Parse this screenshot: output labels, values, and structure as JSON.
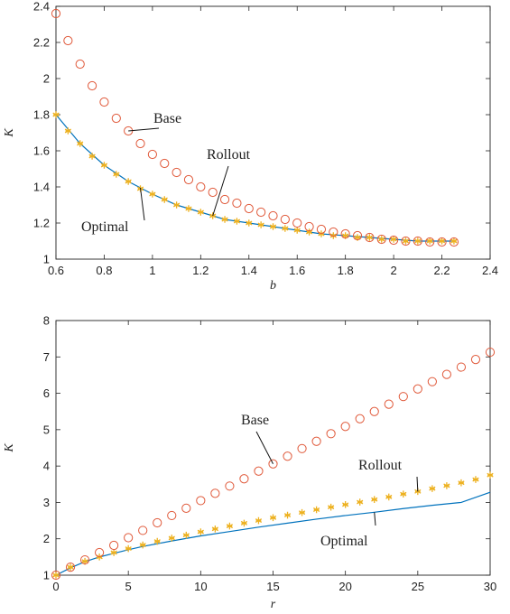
{
  "chart_data": [
    {
      "type": "scatter",
      "xlabel": "b",
      "ylabel": "K",
      "xlim": [
        0.6,
        2.4
      ],
      "ylim": [
        1,
        2.4
      ],
      "xticks": [
        "0.6",
        "0.8",
        "1",
        "1.2",
        "1.4",
        "1.6",
        "1.8",
        "2",
        "2.2",
        "2.4"
      ],
      "yticks": [
        "1",
        "1.2",
        "1.4",
        "1.6",
        "1.8",
        "2",
        "2.2",
        "2.4"
      ],
      "grid": false,
      "annotations": [
        {
          "text": "Base",
          "series": "Base",
          "x": 0.9
        },
        {
          "text": "Rollout",
          "series": "Rollout",
          "x": 1.25
        },
        {
          "text": "Optimal",
          "series": "Optimal",
          "x": 0.95
        }
      ],
      "series": [
        {
          "name": "Base",
          "style": "circle",
          "color": "#e0593a",
          "x": [
            0.6,
            0.65,
            0.7,
            0.75,
            0.8,
            0.85,
            0.9,
            0.95,
            1.0,
            1.05,
            1.1,
            1.15,
            1.2,
            1.25,
            1.3,
            1.35,
            1.4,
            1.45,
            1.5,
            1.55,
            1.6,
            1.65,
            1.7,
            1.75,
            1.8,
            1.85,
            1.9,
            1.95,
            2.0,
            2.05,
            2.1,
            2.15,
            2.2,
            2.25
          ],
          "y": [
            2.36,
            2.21,
            2.08,
            1.96,
            1.87,
            1.78,
            1.71,
            1.64,
            1.58,
            1.53,
            1.48,
            1.44,
            1.4,
            1.37,
            1.33,
            1.31,
            1.28,
            1.26,
            1.24,
            1.22,
            1.2,
            1.18,
            1.165,
            1.15,
            1.14,
            1.13,
            1.12,
            1.11,
            1.105,
            1.1,
            1.1,
            1.095,
            1.095,
            1.095
          ]
        },
        {
          "name": "Rollout",
          "style": "star",
          "color": "#edb120",
          "x": [
            0.6,
            0.65,
            0.7,
            0.75,
            0.8,
            0.85,
            0.9,
            0.95,
            1.0,
            1.05,
            1.1,
            1.15,
            1.2,
            1.25,
            1.3,
            1.35,
            1.4,
            1.45,
            1.5,
            1.55,
            1.6,
            1.65,
            1.7,
            1.75,
            1.8,
            1.85,
            1.9,
            1.95,
            2.0,
            2.05,
            2.1,
            2.15,
            2.2,
            2.25
          ],
          "y": [
            1.8,
            1.71,
            1.64,
            1.57,
            1.52,
            1.47,
            1.43,
            1.39,
            1.36,
            1.33,
            1.3,
            1.28,
            1.26,
            1.24,
            1.22,
            1.21,
            1.2,
            1.19,
            1.18,
            1.17,
            1.16,
            1.15,
            1.14,
            1.13,
            1.13,
            1.12,
            1.12,
            1.11,
            1.11,
            1.1,
            1.1,
            1.1,
            1.1,
            1.1
          ]
        },
        {
          "name": "Optimal",
          "style": "line",
          "color": "#0072bd",
          "x": [
            0.6,
            0.7,
            0.8,
            0.9,
            1.0,
            1.1,
            1.2,
            1.3,
            1.4,
            1.5,
            1.6,
            1.7,
            1.8,
            1.9,
            2.0,
            2.1,
            2.2,
            2.25
          ],
          "y": [
            1.8,
            1.64,
            1.52,
            1.43,
            1.36,
            1.3,
            1.26,
            1.22,
            1.2,
            1.18,
            1.16,
            1.14,
            1.13,
            1.12,
            1.11,
            1.1,
            1.1,
            1.1
          ]
        }
      ]
    },
    {
      "type": "scatter",
      "xlabel": "r",
      "ylabel": "K",
      "xlim": [
        0,
        30
      ],
      "ylim": [
        1,
        8
      ],
      "xticks": [
        "0",
        "5",
        "10",
        "15",
        "20",
        "25",
        "30"
      ],
      "yticks": [
        "1",
        "2",
        "3",
        "4",
        "5",
        "6",
        "7",
        "8"
      ],
      "grid": false,
      "annotations": [
        {
          "text": "Base",
          "series": "Base",
          "x": 15
        },
        {
          "text": "Rollout",
          "series": "Rollout",
          "x": 25
        },
        {
          "text": "Optimal",
          "series": "Optimal",
          "x": 22
        }
      ],
      "series": [
        {
          "name": "Base",
          "style": "circle",
          "color": "#e0593a",
          "x": [
            0,
            1,
            2,
            3,
            4,
            5,
            6,
            7,
            8,
            9,
            10,
            11,
            12,
            13,
            14,
            15,
            16,
            17,
            18,
            19,
            20,
            21,
            22,
            23,
            24,
            25,
            26,
            27,
            28,
            29,
            30
          ],
          "y": [
            1.0,
            1.22,
            1.42,
            1.62,
            1.82,
            2.03,
            2.23,
            2.44,
            2.64,
            2.84,
            3.05,
            3.25,
            3.45,
            3.65,
            3.86,
            4.06,
            4.27,
            4.48,
            4.68,
            4.89,
            5.09,
            5.3,
            5.5,
            5.7,
            5.91,
            6.12,
            6.32,
            6.52,
            6.72,
            6.93,
            7.13
          ]
        },
        {
          "name": "Rollout",
          "style": "star",
          "color": "#edb120",
          "x": [
            0,
            1,
            2,
            3,
            4,
            5,
            6,
            7,
            8,
            9,
            10,
            11,
            12,
            13,
            14,
            15,
            16,
            17,
            18,
            19,
            20,
            21,
            22,
            23,
            24,
            25,
            26,
            27,
            28,
            29,
            30
          ],
          "y": [
            1.0,
            1.22,
            1.38,
            1.5,
            1.62,
            1.73,
            1.83,
            1.93,
            2.02,
            2.1,
            2.19,
            2.27,
            2.35,
            2.43,
            2.5,
            2.58,
            2.65,
            2.72,
            2.8,
            2.87,
            2.94,
            3.01,
            3.08,
            3.15,
            3.23,
            3.3,
            3.38,
            3.46,
            3.54,
            3.63,
            3.75
          ]
        },
        {
          "name": "Optimal",
          "style": "line",
          "color": "#0072bd",
          "x": [
            0,
            1,
            2,
            3,
            4,
            5,
            6,
            8,
            10,
            12,
            14,
            16,
            18,
            20,
            22,
            24,
            26,
            28,
            30
          ],
          "y": [
            1.0,
            1.2,
            1.37,
            1.5,
            1.6,
            1.7,
            1.79,
            1.94,
            2.08,
            2.2,
            2.32,
            2.43,
            2.54,
            2.64,
            2.73,
            2.83,
            2.92,
            3.0,
            3.28
          ]
        }
      ]
    }
  ]
}
